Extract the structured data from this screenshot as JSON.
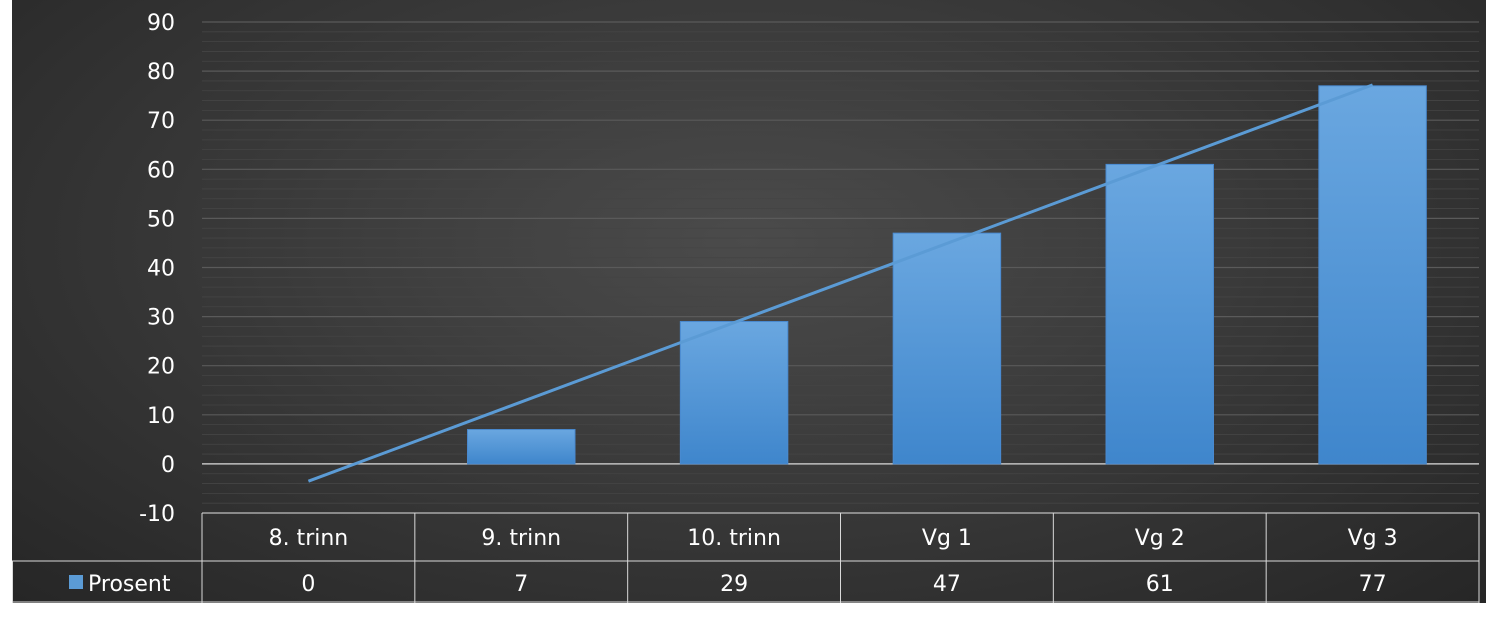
{
  "chart_data": {
    "type": "bar",
    "categories": [
      "8. trinn",
      "9. trinn",
      "10. trinn",
      "Vg 1",
      "Vg 2",
      "Vg 3"
    ],
    "series": [
      {
        "name": "Prosent",
        "values": [
          0,
          7,
          29,
          47,
          61,
          77
        ]
      }
    ],
    "trendline": {
      "type": "linear",
      "series": "Prosent"
    },
    "title": "",
    "xlabel": "",
    "ylabel": "",
    "ylim": [
      -10,
      90
    ],
    "yticks": [
      -10,
      0,
      10,
      20,
      30,
      40,
      50,
      60,
      70,
      80,
      90
    ],
    "grid": true,
    "legend": "data-table",
    "data_table": true,
    "colors": {
      "bar": "#5b9bd5",
      "trendline": "#5b9bd5",
      "background": "#3a3a3a",
      "text": "#ffffff"
    }
  }
}
